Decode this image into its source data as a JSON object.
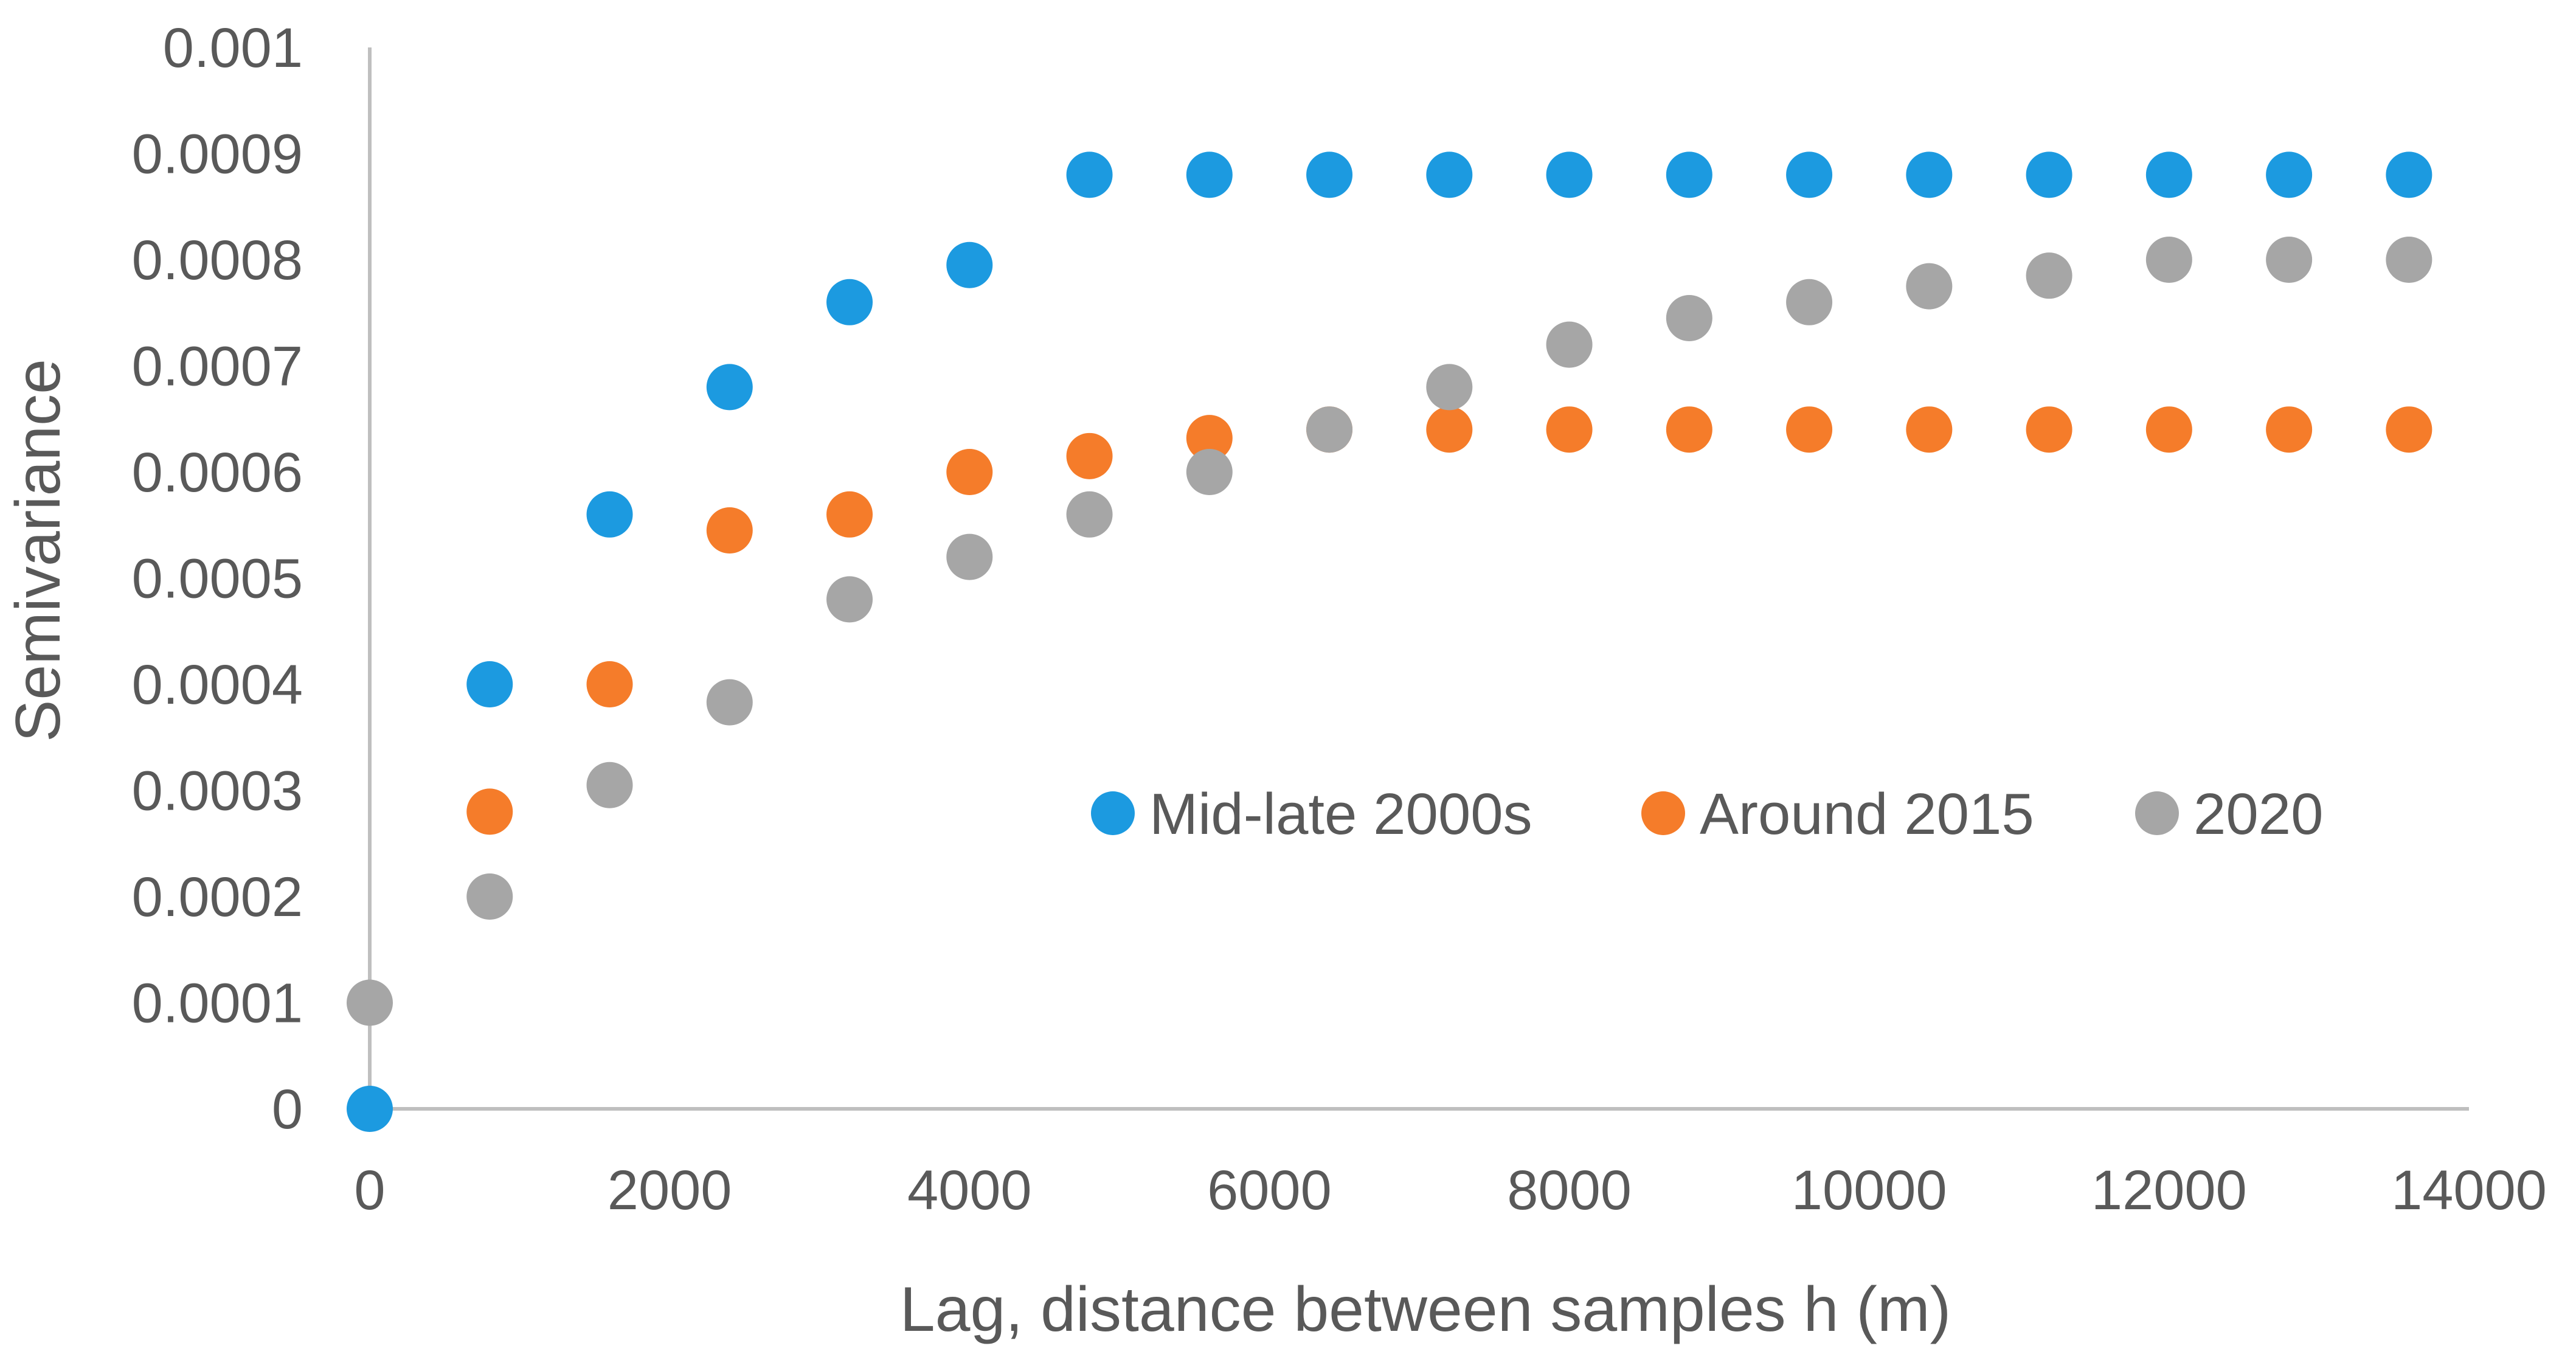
{
  "colors": {
    "series_mid_late_2000s": "#1C9AE0",
    "series_around_2015": "#F57C2A",
    "series_2020": "#A6A6A6",
    "axis_line": "#BFBFBF",
    "text": "#595959"
  },
  "chart_data": {
    "type": "scatter",
    "title": "",
    "xlabel": "Lag, distance between samples h (m)",
    "ylabel": "Semivariance",
    "xlim": [
      0,
      14000
    ],
    "ylim": [
      0,
      0.001
    ],
    "x_ticks": [
      0,
      2000,
      4000,
      6000,
      8000,
      10000,
      12000,
      14000
    ],
    "x_tick_labels": [
      "0",
      "2000",
      "4000",
      "6000",
      "8000",
      "10000",
      "12000",
      "14000"
    ],
    "y_ticks": [
      0,
      0.0001,
      0.0002,
      0.0003,
      0.0004,
      0.0005,
      0.0006,
      0.0007,
      0.0008,
      0.0009,
      0.001
    ],
    "y_tick_labels": [
      "0",
      "0.0001",
      "0.0002",
      "0.0003",
      "0.0004",
      "0.0005",
      "0.0006",
      "0.0007",
      "0.0008",
      "0.0009",
      "0.001"
    ],
    "grid": false,
    "legend_position": "middle-right",
    "x": [
      0,
      800,
      1600,
      2400,
      3200,
      4000,
      4800,
      5600,
      6400,
      7200,
      8000,
      8800,
      9600,
      10400,
      11200,
      12000,
      12800,
      13600
    ],
    "series": [
      {
        "name": "Mid-late 2000s",
        "color": "#1C9AE0",
        "values": [
          0,
          0.0004,
          0.00056,
          0.00068,
          0.00076,
          0.000795,
          0.00088,
          0.00088,
          0.00088,
          0.00088,
          0.00088,
          0.00088,
          0.00088,
          0.00088,
          0.00088,
          0.00088,
          0.00088,
          0.00088
        ]
      },
      {
        "name": "Around 2015",
        "color": "#F57C2A",
        "values": [
          null,
          0.00028,
          0.0004,
          0.000545,
          0.00056,
          0.0006,
          0.000615,
          0.000632,
          0.00064,
          0.00064,
          0.00064,
          0.00064,
          0.00064,
          0.00064,
          0.00064,
          0.00064,
          0.00064,
          0.00064
        ]
      },
      {
        "name": "2020",
        "color": "#A6A6A6",
        "values": [
          0.0001,
          0.0002,
          0.000305,
          0.000383,
          0.00048,
          0.00052,
          0.00056,
          0.0006,
          0.00064,
          0.00068,
          0.00072,
          0.000745,
          0.00076,
          0.000775,
          0.000785,
          0.0008,
          0.0008,
          0.0008
        ]
      }
    ]
  }
}
